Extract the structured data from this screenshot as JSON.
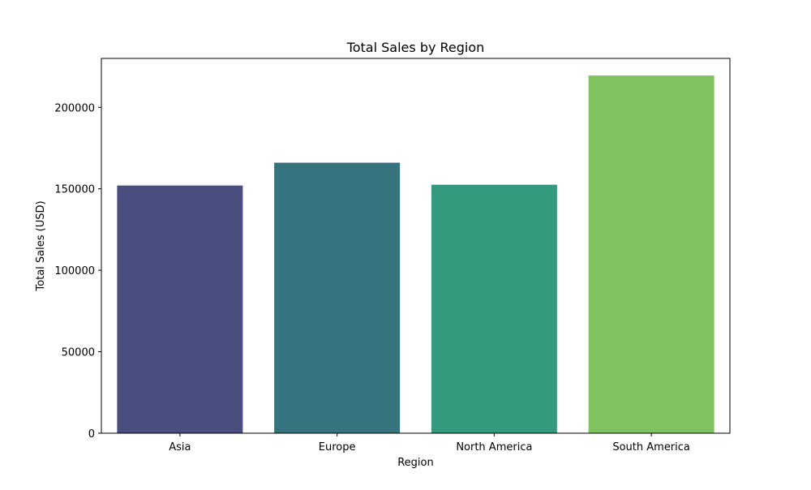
{
  "chart_data": {
    "type": "bar",
    "title": "Total Sales by Region",
    "xlabel": "Region",
    "ylabel": "Total Sales (USD)",
    "categories": [
      "Asia",
      "Europe",
      "North America",
      "South America"
    ],
    "values": [
      152000,
      166000,
      152500,
      219500
    ],
    "colors": [
      "#4a4e7e",
      "#36737e",
      "#35997d",
      "#81c35f"
    ],
    "ylim": [
      0,
      230000
    ],
    "yticks": [
      0,
      50000,
      100000,
      150000,
      200000
    ],
    "ytick_labels": [
      "0",
      "50000",
      "100000",
      "150000",
      "200000"
    ],
    "grid": false,
    "legend": "none"
  }
}
